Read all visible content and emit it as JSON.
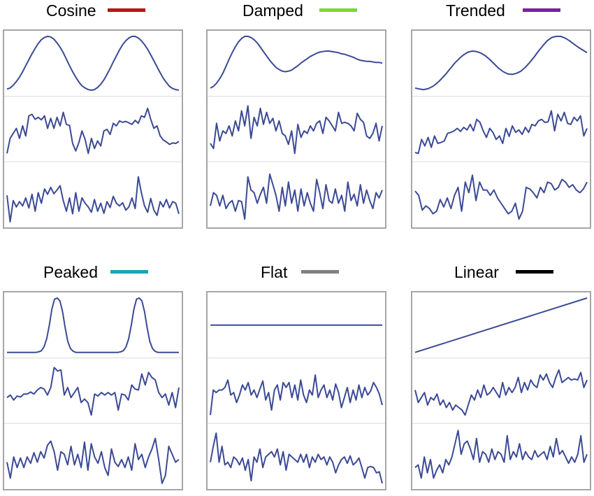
{
  "chart_data": [
    {
      "type": "line",
      "title": "Cosine",
      "legend_color": "#b01818",
      "line_color": "#3b4a95",
      "grid": false,
      "rows": [
        {
          "values": [
            0.03,
            0.05,
            0.1,
            0.17,
            0.25,
            0.35,
            0.46,
            0.57,
            0.68,
            0.78,
            0.87,
            0.94,
            0.98,
            1.0,
            0.99,
            0.95,
            0.88,
            0.8,
            0.7,
            0.58,
            0.46,
            0.35,
            0.25,
            0.16,
            0.09,
            0.05,
            0.02,
            0.01,
            0.02,
            0.06,
            0.12,
            0.2,
            0.3,
            0.41,
            0.53,
            0.64,
            0.75,
            0.85,
            0.92,
            0.97,
            1.0,
            1.0,
            0.97,
            0.92,
            0.85,
            0.76,
            0.66,
            0.55,
            0.44,
            0.33,
            0.23,
            0.15,
            0.08,
            0.04,
            0.02,
            0.01
          ]
        },
        {
          "values": [
            0.0,
            0.3,
            0.4,
            0.5,
            0.3,
            0.55,
            0.35,
            0.75,
            0.78,
            0.68,
            0.72,
            0.67,
            0.75,
            0.5,
            0.7,
            0.5,
            0.72,
            0.55,
            0.82,
            0.58,
            0.56,
            0.2,
            0.05,
            0.22,
            0.45,
            0.28,
            0.0,
            0.3,
            0.1,
            0.25,
            0.15,
            0.45,
            0.48,
            0.38,
            0.6,
            0.55,
            0.65,
            0.62,
            0.64,
            0.61,
            0.58,
            0.66,
            0.6,
            0.75,
            0.72,
            0.9,
            0.68,
            0.5,
            0.55,
            0.35,
            0.27,
            0.23,
            0.18,
            0.21,
            0.2,
            0.24
          ]
        },
        {
          "values": [
            0.5,
            0.0,
            0.4,
            0.28,
            0.38,
            0.3,
            0.45,
            0.26,
            0.52,
            0.2,
            0.55,
            0.35,
            0.62,
            0.52,
            0.65,
            0.53,
            0.6,
            0.68,
            0.4,
            0.2,
            0.45,
            0.15,
            0.55,
            0.2,
            0.45,
            0.35,
            0.28,
            0.18,
            0.42,
            0.2,
            0.35,
            0.16,
            0.38,
            0.27,
            0.48,
            0.35,
            0.3,
            0.36,
            0.22,
            0.28,
            0.45,
            0.25,
            0.85,
            0.55,
            0.3,
            0.18,
            0.44,
            0.22,
            0.12,
            0.38,
            0.28,
            0.42,
            0.26,
            0.38,
            0.35,
            0.15
          ]
        }
      ]
    },
    {
      "type": "line",
      "title": "Damped",
      "legend_color": "#7dd63c",
      "line_color": "#3b4a95",
      "grid": false,
      "rows": [
        {
          "values": [
            0.05,
            0.08,
            0.14,
            0.22,
            0.32,
            0.45,
            0.58,
            0.7,
            0.81,
            0.9,
            0.96,
            1.0,
            1.0,
            0.98,
            0.94,
            0.88,
            0.8,
            0.72,
            0.64,
            0.56,
            0.49,
            0.43,
            0.39,
            0.36,
            0.35,
            0.36,
            0.38,
            0.42,
            0.46,
            0.51,
            0.55,
            0.59,
            0.63,
            0.66,
            0.69,
            0.71,
            0.72,
            0.73,
            0.73,
            0.72,
            0.71,
            0.7,
            0.68,
            0.67,
            0.65,
            0.63,
            0.61,
            0.58,
            0.56,
            0.55,
            0.54,
            0.54,
            0.53,
            0.52,
            0.52,
            0.51
          ]
        },
        {
          "values": [
            0.2,
            0.1,
            0.6,
            0.25,
            0.45,
            0.4,
            0.55,
            0.35,
            0.65,
            0.45,
            0.85,
            0.55,
            0.95,
            0.3,
            0.72,
            0.55,
            0.9,
            0.58,
            0.82,
            0.6,
            0.7,
            0.45,
            0.65,
            0.4,
            0.35,
            0.18,
            0.45,
            0.0,
            0.58,
            0.32,
            0.45,
            0.4,
            0.55,
            0.45,
            0.6,
            0.65,
            0.4,
            0.72,
            0.65,
            0.55,
            0.45,
            0.82,
            0.6,
            0.62,
            0.6,
            0.55,
            0.45,
            0.8,
            0.68,
            0.62,
            0.35,
            0.3,
            0.4,
            0.6,
            0.25,
            0.55
          ]
        },
        {
          "values": [
            0.3,
            0.55,
            0.5,
            0.3,
            0.5,
            0.25,
            0.35,
            0.4,
            0.2,
            0.4,
            0.38,
            0.05,
            0.85,
            0.6,
            0.55,
            0.35,
            0.52,
            0.65,
            0.35,
            0.9,
            0.7,
            0.5,
            0.2,
            0.65,
            0.3,
            0.75,
            0.35,
            0.6,
            0.2,
            0.62,
            0.3,
            0.55,
            0.35,
            0.2,
            0.8,
            0.55,
            0.25,
            0.7,
            0.4,
            0.35,
            0.62,
            0.35,
            0.5,
            0.2,
            0.75,
            0.4,
            0.52,
            0.3,
            0.7,
            0.35,
            0.6,
            0.4,
            0.25,
            0.55,
            0.45,
            0.6
          ]
        }
      ]
    },
    {
      "type": "line",
      "title": "Trended",
      "legend_color": "#7b1fa2",
      "line_color": "#3b4a95",
      "grid": false,
      "rows": [
        {
          "values": [
            0.05,
            0.03,
            0.02,
            0.04,
            0.08,
            0.14,
            0.22,
            0.31,
            0.41,
            0.51,
            0.59,
            0.66,
            0.71,
            0.73,
            0.72,
            0.69,
            0.64,
            0.57,
            0.49,
            0.41,
            0.35,
            0.31,
            0.3,
            0.32,
            0.36,
            0.43,
            0.52,
            0.62,
            0.73,
            0.83,
            0.92,
            0.98,
            1.0,
            1.0,
            0.97,
            0.92,
            0.86,
            0.8,
            0.75,
            0.7
          ]
        },
        {
          "values": [
            0.02,
            0.0,
            0.28,
            0.15,
            0.32,
            0.12,
            0.35,
            0.2,
            0.22,
            0.25,
            0.4,
            0.42,
            0.45,
            0.5,
            0.44,
            0.52,
            0.47,
            0.58,
            0.45,
            0.68,
            0.62,
            0.45,
            0.32,
            0.5,
            0.42,
            0.28,
            0.35,
            0.2,
            0.5,
            0.34,
            0.55,
            0.42,
            0.47,
            0.38,
            0.52,
            0.42,
            0.58,
            0.55,
            0.65,
            0.68,
            0.62,
            0.63,
            0.85,
            0.45,
            0.78,
            0.65,
            0.82,
            0.6,
            0.58,
            0.72,
            0.65,
            0.75,
            0.35,
            0.5
          ]
        },
        {
          "values": [
            0.58,
            0.5,
            0.22,
            0.3,
            0.25,
            0.15,
            0.2,
            0.42,
            0.28,
            0.45,
            0.25,
            0.5,
            0.65,
            0.2,
            0.75,
            0.55,
            0.88,
            0.4,
            0.75,
            0.6,
            0.6,
            0.5,
            0.6,
            0.45,
            0.35,
            0.25,
            0.15,
            0.2,
            0.35,
            0.05,
            0.2,
            0.65,
            0.62,
            0.55,
            0.45,
            0.65,
            0.55,
            0.75,
            0.72,
            0.6,
            0.65,
            0.8,
            0.75,
            0.65,
            0.7,
            0.6,
            0.55,
            0.62,
            0.75
          ]
        }
      ]
    },
    {
      "type": "line",
      "title": "Peaked",
      "legend_color": "#19a6b4",
      "line_color": "#3b4a95",
      "grid": false,
      "rows": [
        {
          "values": [
            0.0,
            0.0,
            0.0,
            0.0,
            0.0,
            0.0,
            0.0,
            0.0,
            0.0,
            0.0,
            0.0,
            0.0,
            0.01,
            0.03,
            0.1,
            0.25,
            0.5,
            0.8,
            0.98,
            1.0,
            0.95,
            0.75,
            0.45,
            0.2,
            0.07,
            0.02,
            0.0,
            0.0,
            0.0,
            0.0,
            0.0,
            0.0,
            0.0,
            0.0,
            0.0,
            0.0,
            0.0,
            0.0,
            0.0,
            0.0,
            0.0,
            0.0,
            0.0,
            0.01,
            0.03,
            0.1,
            0.25,
            0.5,
            0.8,
            0.98,
            1.0,
            0.95,
            0.75,
            0.45,
            0.2,
            0.07,
            0.02,
            0.0,
            0.0,
            0.0,
            0.0,
            0.0,
            0.0,
            0.0,
            0.0,
            0.0
          ]
        },
        {
          "values": [
            0.35,
            0.4,
            0.3,
            0.38,
            0.36,
            0.42,
            0.42,
            0.46,
            0.42,
            0.5,
            0.55,
            0.52,
            0.4,
            0.55,
            0.95,
            0.88,
            0.9,
            0.4,
            0.55,
            0.35,
            0.45,
            0.55,
            0.25,
            0.32,
            0.25,
            0.0,
            0.42,
            0.38,
            0.45,
            0.4,
            0.45,
            0.4,
            0.45,
            0.1,
            0.42,
            0.4,
            0.3,
            0.6,
            0.52,
            0.5,
            0.82,
            0.6,
            0.85,
            0.75,
            0.7,
            0.45,
            0.35,
            0.42,
            0.2,
            0.45,
            0.15,
            0.55
          ]
        },
        {
          "values": [
            0.4,
            0.1,
            0.5,
            0.3,
            0.48,
            0.3,
            0.5,
            0.38,
            0.58,
            0.4,
            0.6,
            0.48,
            0.72,
            0.8,
            0.6,
            0.25,
            0.6,
            0.55,
            0.35,
            0.7,
            0.35,
            0.55,
            0.3,
            0.78,
            0.25,
            0.75,
            0.5,
            0.38,
            0.6,
            0.3,
            0.15,
            0.65,
            0.4,
            0.32,
            0.45,
            0.3,
            0.5,
            0.25,
            0.75,
            0.45,
            0.55,
            0.3,
            0.5,
            0.65,
            0.85,
            0.45,
            0.0,
            0.15,
            0.7,
            0.55,
            0.4,
            0.45
          ]
        }
      ]
    },
    {
      "type": "line",
      "title": "Flat",
      "legend_color": "#808080",
      "line_color": "#3b4a95",
      "grid": false,
      "rows": [
        {
          "values": [
            0.5,
            0.5
          ]
        },
        {
          "values": [
            0.0,
            0.5,
            0.45,
            0.5,
            0.5,
            0.55,
            0.7,
            0.4,
            0.45,
            0.25,
            0.4,
            0.6,
            0.5,
            0.65,
            0.4,
            0.5,
            0.35,
            0.52,
            0.68,
            0.3,
            0.45,
            0.1,
            0.5,
            0.6,
            0.3,
            0.65,
            0.55,
            0.65,
            0.35,
            0.6,
            0.3,
            0.7,
            0.4,
            0.25,
            0.5,
            0.4,
            0.8,
            0.35,
            0.5,
            0.6,
            0.35,
            0.5,
            0.3,
            0.62,
            0.45,
            0.15,
            0.35,
            0.55,
            0.25,
            0.5,
            0.3,
            0.6,
            0.35,
            0.55,
            0.4,
            0.48,
            0.65,
            0.55,
            0.42,
            0.2
          ]
        },
        {
          "values": [
            0.4,
            0.7,
            0.95,
            0.4,
            0.7,
            0.35,
            0.4,
            0.3,
            0.5,
            0.45,
            0.35,
            0.48,
            0.25,
            0.45,
            0.05,
            0.5,
            0.4,
            0.65,
            0.3,
            0.5,
            0.55,
            0.6,
            0.5,
            0.65,
            0.35,
            0.6,
            0.25,
            0.55,
            0.5,
            0.45,
            0.4,
            0.55,
            0.4,
            0.55,
            0.3,
            0.5,
            0.4,
            0.55,
            0.45,
            0.5,
            0.35,
            0.5,
            0.4,
            0.2,
            0.35,
            0.45,
            0.5,
            0.38,
            0.52,
            0.35,
            0.4,
            0.48,
            0.3,
            0.1,
            0.3,
            0.32,
            0.3,
            0.2,
            0.22,
            0.0
          ]
        }
      ]
    },
    {
      "type": "line",
      "title": "Linear",
      "legend_color": "#000000",
      "line_color": "#3b4a95",
      "grid": false,
      "rows": [
        {
          "values": [
            0.0,
            1.0
          ]
        },
        {
          "values": [
            0.5,
            0.25,
            0.35,
            0.45,
            0.2,
            0.35,
            0.3,
            0.42,
            0.2,
            0.3,
            0.15,
            0.25,
            0.1,
            0.2,
            0.15,
            0.1,
            0.0,
            0.2,
            0.4,
            0.3,
            0.5,
            0.35,
            0.6,
            0.4,
            0.45,
            0.55,
            0.45,
            0.35,
            0.65,
            0.4,
            0.55,
            0.45,
            0.55,
            0.75,
            0.45,
            0.65,
            0.5,
            0.7,
            0.6,
            0.55,
            0.8,
            0.7,
            0.82,
            0.65,
            0.55,
            0.75,
            0.9,
            0.65,
            0.7,
            0.75,
            0.7,
            0.72,
            0.7,
            0.85,
            0.55,
            0.7
          ]
        },
        {
          "values": [
            0.3,
            0.35,
            0.1,
            0.5,
            0.2,
            0.45,
            0.1,
            0.25,
            0.35,
            0.2,
            0.45,
            0.35,
            0.5,
            0.75,
            1.0,
            0.55,
            0.75,
            0.8,
            0.65,
            0.45,
            0.85,
            0.4,
            0.6,
            0.55,
            0.4,
            0.65,
            0.45,
            0.6,
            0.55,
            0.4,
            0.9,
            0.45,
            0.6,
            0.5,
            0.75,
            0.45,
            0.6,
            0.5,
            0.45,
            0.62,
            0.5,
            0.55,
            0.6,
            0.45,
            0.7,
            0.5,
            0.85,
            0.55,
            0.62,
            0.5,
            0.38,
            0.5,
            0.4,
            0.55,
            0.9,
            0.4,
            0.55
          ]
        }
      ]
    }
  ]
}
